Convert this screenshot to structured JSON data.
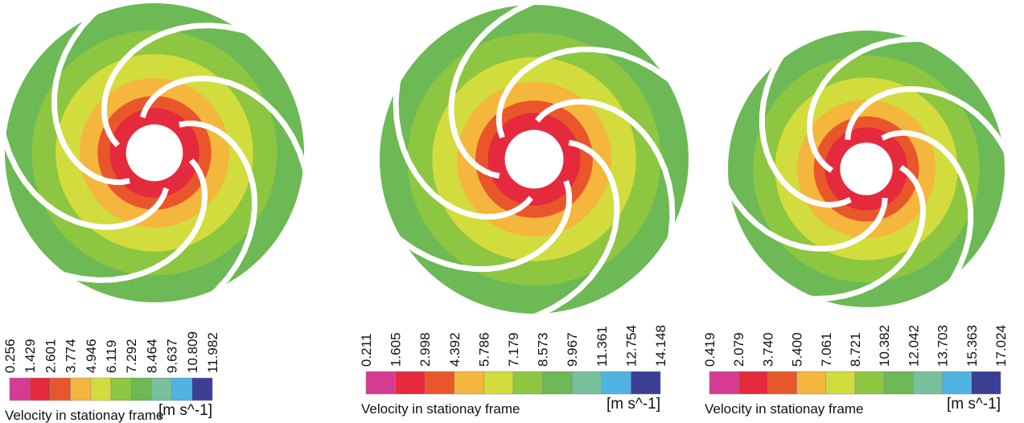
{
  "colormap": [
    "#d63a93",
    "#e42a3c",
    "#e9562b",
    "#f4b63c",
    "#d2dc3d",
    "#8dc640",
    "#6cb955",
    "#76c09c",
    "#4fb4e2",
    "#3b3f96"
  ],
  "panels": [
    {
      "ticks": [
        "0.256",
        "1.429",
        "2.601",
        "3.774",
        "4.946",
        "6.119",
        "7.292",
        "8.464",
        "9.637",
        "10.809",
        "11.982"
      ],
      "title": "Velocity in stationay frame",
      "unit": "[m s^-1]"
    },
    {
      "ticks": [
        "0.211",
        "1.605",
        "2.998",
        "4.392",
        "5.786",
        "7.179",
        "8.573",
        "9.967",
        "11.361",
        "12.754",
        "14.148"
      ],
      "title": "Velocity in stationay frame",
      "unit": "[m s^-1]"
    },
    {
      "ticks": [
        "0.419",
        "2.079",
        "3.740",
        "5.400",
        "7.061",
        "8.721",
        "10.382",
        "12.042",
        "13.703",
        "15.363",
        "17.024"
      ],
      "title": "Velocity in stationay frame",
      "unit": "[m s^-1]"
    }
  ]
}
